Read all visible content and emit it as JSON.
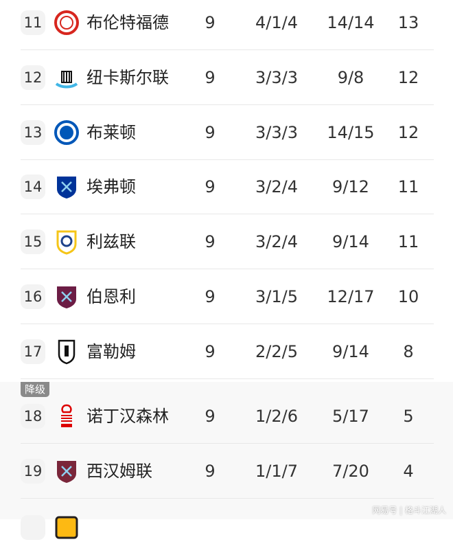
{
  "standings": [
    {
      "rank": "11",
      "team": "布伦特福德",
      "played": "9",
      "wdl": "4/1/4",
      "goals": "14/14",
      "points": "13",
      "logo": "brentford-crest",
      "color": "#d7261e"
    },
    {
      "rank": "12",
      "team": "纽卡斯尔联",
      "played": "9",
      "wdl": "3/3/3",
      "goals": "9/8",
      "points": "12",
      "logo": "newcastle-crest",
      "color": "#41b6e6"
    },
    {
      "rank": "13",
      "team": "布莱顿",
      "played": "9",
      "wdl": "3/3/3",
      "goals": "14/15",
      "points": "12",
      "logo": "brighton-crest",
      "color": "#0057b8"
    },
    {
      "rank": "14",
      "team": "埃弗顿",
      "played": "9",
      "wdl": "3/2/4",
      "goals": "9/12",
      "points": "11",
      "logo": "everton-crest",
      "color": "#003399"
    },
    {
      "rank": "15",
      "team": "利兹联",
      "played": "9",
      "wdl": "3/2/4",
      "goals": "9/14",
      "points": "11",
      "logo": "leeds-crest",
      "color": "#f5c518"
    },
    {
      "rank": "16",
      "team": "伯恩利",
      "played": "9",
      "wdl": "3/1/5",
      "goals": "12/17",
      "points": "10",
      "logo": "burnley-crest",
      "color": "#6c1d45"
    },
    {
      "rank": "17",
      "team": "富勒姆",
      "played": "9",
      "wdl": "2/2/5",
      "goals": "9/14",
      "points": "8",
      "logo": "fulham-crest",
      "color": "#111111"
    },
    {
      "rank": "18",
      "team": "诺丁汉森林",
      "played": "9",
      "wdl": "1/2/6",
      "goals": "5/17",
      "points": "5",
      "logo": "forest-crest",
      "color": "#dd0000"
    },
    {
      "rank": "19",
      "team": "西汉姆联",
      "played": "9",
      "wdl": "1/1/7",
      "goals": "7/20",
      "points": "4",
      "logo": "westham-crest",
      "color": "#7a263a"
    }
  ],
  "relegation_label": "降级",
  "watermark": "网易号 | 格斗江湖人"
}
